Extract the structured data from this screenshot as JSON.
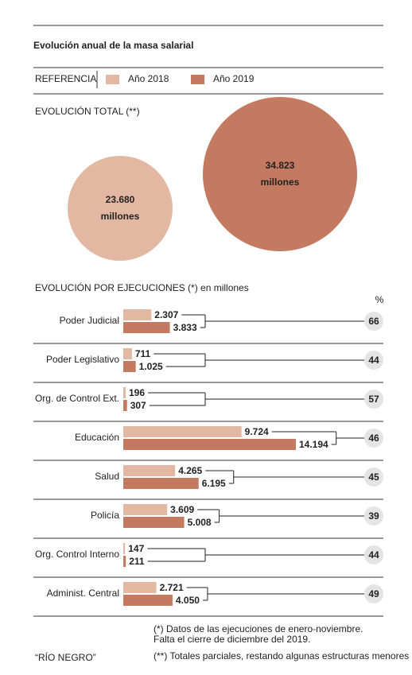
{
  "title": "Evolución anual de la masa salarial",
  "legend_title": "REFERENCIA",
  "chart_data": [
    {
      "type": "circles",
      "title": "EVOLUCIÓN TOTAL (**)",
      "unit": "millones",
      "values": [
        23680,
        34823
      ],
      "value_labels": [
        "23.680",
        "34.823"
      ],
      "colors": [
        "#e3b8a2",
        "#c47a60"
      ]
    },
    {
      "type": "hbar",
      "title": "EVOLUCIÓN POR EJECUCIONES (*) en millones",
      "categories": [
        "Poder Judicial",
        "Poder Legislativo",
        "Org. de Control Ext.",
        "Educación",
        "Salud",
        "Policía",
        "Org. Control Interno",
        "Administ. Central"
      ],
      "series": [
        {
          "name": "Año 2018",
          "color": "#e3b8a2",
          "values": [
            2307,
            711,
            196,
            9724,
            4265,
            3609,
            147,
            2721
          ],
          "value_labels": [
            "2.307",
            "711",
            "196",
            "9.724",
            "4.265",
            "3.609",
            "147",
            "2.721"
          ]
        },
        {
          "name": "Año 2019",
          "color": "#c47a60",
          "values": [
            3833,
            1025,
            307,
            14194,
            6195,
            5008,
            211,
            4050
          ],
          "value_labels": [
            "3.833",
            "1.025",
            "307",
            "14.194",
            "6.195",
            "5.008",
            "211",
            "4.050"
          ]
        }
      ],
      "pct_title": "%",
      "pct_values": [
        66,
        44,
        57,
        46,
        45,
        39,
        44,
        49
      ]
    }
  ],
  "notes": [
    "(*) Datos de las ejecuciones de enero-noviembre.",
    "Falta el cierre de diciembre del 2019.",
    "(**) Totales parciales, restando algunas estructuras menores"
  ],
  "source": "“RÍO NEGRO”"
}
